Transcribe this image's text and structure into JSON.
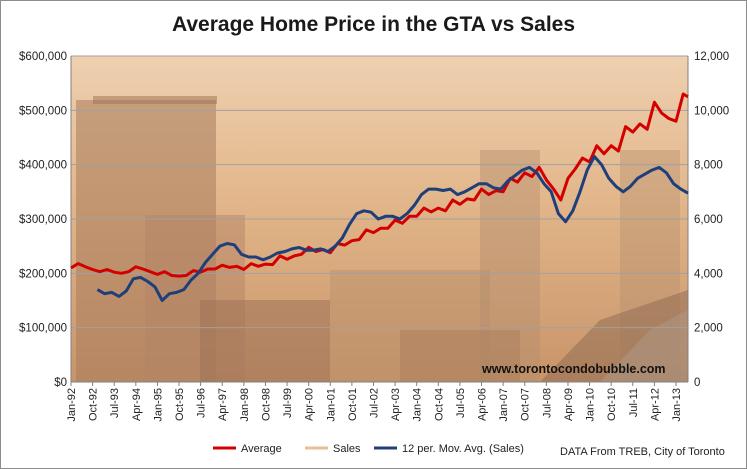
{
  "chart_data": {
    "type": "line",
    "title": "Average Home Price in the GTA vs Sales",
    "x_labels": [
      "Jan-92",
      "Oct-92",
      "Jul-93",
      "Apr-94",
      "Jan-95",
      "Oct-95",
      "Jul-96",
      "Apr-97",
      "Jan-98",
      "Oct-98",
      "Jul-99",
      "Apr-00",
      "Jan-01",
      "Oct-01",
      "Jul-02",
      "Apr-03",
      "Jan-04",
      "Oct-04",
      "Jul-05",
      "Apr-06",
      "Jan-07",
      "Oct-07",
      "Jul-08",
      "Apr-09",
      "Jan-10",
      "Oct-10",
      "Jul-11",
      "Apr-12",
      "Jan-13"
    ],
    "y_left": {
      "min": 0,
      "max": 600000,
      "ticks": [
        "$0",
        "$100,000",
        "$200,000",
        "$300,000",
        "$400,000",
        "$500,000",
        "$600,000"
      ]
    },
    "y_right": {
      "min": 0,
      "max": 12000,
      "ticks": [
        "0",
        "2,000",
        "4,000",
        "6,000",
        "8,000",
        "10,000",
        "12,000"
      ]
    },
    "grid": "horizontal",
    "legend_position": "bottom",
    "series": [
      {
        "name": "Average",
        "axis": "left",
        "color": "#d40000",
        "points": [
          [
            "Jan-92",
            210000
          ],
          [
            "Apr-92",
            218000
          ],
          [
            "Jul-92",
            212000
          ],
          [
            "Oct-92",
            207000
          ],
          [
            "Jan-93",
            203000
          ],
          [
            "Apr-93",
            207000
          ],
          [
            "Jul-93",
            202000
          ],
          [
            "Oct-93",
            200000
          ],
          [
            "Jan-94",
            203000
          ],
          [
            "Apr-94",
            212000
          ],
          [
            "Jul-94",
            208000
          ],
          [
            "Oct-94",
            203000
          ],
          [
            "Jan-95",
            198000
          ],
          [
            "Apr-95",
            203000
          ],
          [
            "Jul-95",
            196000
          ],
          [
            "Oct-95",
            195000
          ],
          [
            "Jan-96",
            196000
          ],
          [
            "Apr-96",
            205000
          ],
          [
            "Jul-96",
            202000
          ],
          [
            "Oct-96",
            208000
          ],
          [
            "Jan-97",
            208000
          ],
          [
            "Apr-97",
            215000
          ],
          [
            "Jul-97",
            211000
          ],
          [
            "Oct-97",
            213000
          ],
          [
            "Jan-98",
            207000
          ],
          [
            "Apr-98",
            218000
          ],
          [
            "Jul-98",
            213000
          ],
          [
            "Oct-98",
            217000
          ],
          [
            "Jan-99",
            216000
          ],
          [
            "Apr-99",
            232000
          ],
          [
            "Jul-99",
            226000
          ],
          [
            "Oct-99",
            232000
          ],
          [
            "Jan-00",
            235000
          ],
          [
            "Apr-00",
            248000
          ],
          [
            "Jul-00",
            240000
          ],
          [
            "Oct-00",
            244000
          ],
          [
            "Jan-01",
            238000
          ],
          [
            "Apr-01",
            255000
          ],
          [
            "Jul-01",
            252000
          ],
          [
            "Oct-01",
            260000
          ],
          [
            "Jan-02",
            262000
          ],
          [
            "Apr-02",
            280000
          ],
          [
            "Jul-02",
            275000
          ],
          [
            "Oct-02",
            283000
          ],
          [
            "Jan-03",
            283000
          ],
          [
            "Apr-03",
            298000
          ],
          [
            "Jul-03",
            292000
          ],
          [
            "Oct-03",
            305000
          ],
          [
            "Jan-04",
            305000
          ],
          [
            "Apr-04",
            320000
          ],
          [
            "Jul-04",
            313000
          ],
          [
            "Oct-04",
            320000
          ],
          [
            "Jan-05",
            315000
          ],
          [
            "Apr-05",
            335000
          ],
          [
            "Jul-05",
            327000
          ],
          [
            "Oct-05",
            337000
          ],
          [
            "Jan-06",
            335000
          ],
          [
            "Apr-06",
            355000
          ],
          [
            "Jul-06",
            345000
          ],
          [
            "Oct-06",
            352000
          ],
          [
            "Jan-07",
            350000
          ],
          [
            "Apr-07",
            375000
          ],
          [
            "Jul-07",
            368000
          ],
          [
            "Oct-07",
            385000
          ],
          [
            "Jan-08",
            378000
          ],
          [
            "Apr-08",
            395000
          ],
          [
            "Jul-08",
            372000
          ],
          [
            "Oct-08",
            355000
          ],
          [
            "Jan-09",
            335000
          ],
          [
            "Apr-09",
            375000
          ],
          [
            "Jul-09",
            392000
          ],
          [
            "Oct-09",
            412000
          ],
          [
            "Jan-10",
            405000
          ],
          [
            "Apr-10",
            435000
          ],
          [
            "Jul-10",
            420000
          ],
          [
            "Oct-10",
            435000
          ],
          [
            "Jan-11",
            425000
          ],
          [
            "Apr-11",
            470000
          ],
          [
            "Jul-11",
            460000
          ],
          [
            "Oct-11",
            475000
          ],
          [
            "Jan-12",
            465000
          ],
          [
            "Apr-12",
            515000
          ],
          [
            "Jul-12",
            495000
          ],
          [
            "Oct-12",
            485000
          ],
          [
            "Jan-13",
            480000
          ],
          [
            "Apr-13",
            530000
          ],
          [
            "Jun-13",
            525000
          ]
        ]
      },
      {
        "name": "Sales",
        "axis": "right",
        "color": "#e8c090",
        "points": []
      },
      {
        "name": "12 per. Mov. Avg. (Sales)",
        "axis": "right",
        "color": "#1f3f7a",
        "points": [
          [
            "Dec-92",
            3400
          ],
          [
            "Mar-93",
            3250
          ],
          [
            "Jun-93",
            3300
          ],
          [
            "Sep-93",
            3150
          ],
          [
            "Dec-93",
            3350
          ],
          [
            "Mar-94",
            3800
          ],
          [
            "Jun-94",
            3850
          ],
          [
            "Sep-94",
            3700
          ],
          [
            "Dec-94",
            3500
          ],
          [
            "Mar-95",
            3000
          ],
          [
            "Jun-95",
            3250
          ],
          [
            "Sep-95",
            3300
          ],
          [
            "Dec-95",
            3400
          ],
          [
            "Mar-96",
            3750
          ],
          [
            "Jun-96",
            4000
          ],
          [
            "Sep-96",
            4400
          ],
          [
            "Dec-96",
            4700
          ],
          [
            "Mar-97",
            5000
          ],
          [
            "Jun-97",
            5100
          ],
          [
            "Sep-97",
            5050
          ],
          [
            "Dec-97",
            4700
          ],
          [
            "Mar-98",
            4600
          ],
          [
            "Jun-98",
            4600
          ],
          [
            "Sep-98",
            4500
          ],
          [
            "Dec-98",
            4600
          ],
          [
            "Mar-99",
            4750
          ],
          [
            "Jun-99",
            4800
          ],
          [
            "Sep-99",
            4900
          ],
          [
            "Dec-99",
            4950
          ],
          [
            "Mar-00",
            4850
          ],
          [
            "Jun-00",
            4850
          ],
          [
            "Sep-00",
            4900
          ],
          [
            "Dec-00",
            4800
          ],
          [
            "Mar-01",
            5000
          ],
          [
            "Jun-01",
            5300
          ],
          [
            "Sep-01",
            5800
          ],
          [
            "Dec-01",
            6200
          ],
          [
            "Mar-02",
            6300
          ],
          [
            "Jun-02",
            6250
          ],
          [
            "Sep-02",
            6000
          ],
          [
            "Dec-02",
            6100
          ],
          [
            "Mar-03",
            6100
          ],
          [
            "Jun-03",
            6000
          ],
          [
            "Sep-03",
            6200
          ],
          [
            "Dec-03",
            6500
          ],
          [
            "Mar-04",
            6900
          ],
          [
            "Jun-04",
            7100
          ],
          [
            "Sep-04",
            7100
          ],
          [
            "Dec-04",
            7050
          ],
          [
            "Mar-05",
            7100
          ],
          [
            "Jun-05",
            6900
          ],
          [
            "Sep-05",
            7000
          ],
          [
            "Dec-05",
            7150
          ],
          [
            "Mar-06",
            7300
          ],
          [
            "Jun-06",
            7300
          ],
          [
            "Sep-06",
            7150
          ],
          [
            "Dec-06",
            7100
          ],
          [
            "Mar-07",
            7400
          ],
          [
            "Jun-07",
            7600
          ],
          [
            "Sep-07",
            7800
          ],
          [
            "Dec-07",
            7900
          ],
          [
            "Mar-08",
            7700
          ],
          [
            "Jun-08",
            7300
          ],
          [
            "Sep-08",
            7000
          ],
          [
            "Dec-08",
            6200
          ],
          [
            "Mar-09",
            5900
          ],
          [
            "Jun-09",
            6300
          ],
          [
            "Sep-09",
            7000
          ],
          [
            "Dec-09",
            7800
          ],
          [
            "Mar-10",
            8300
          ],
          [
            "Jun-10",
            8000
          ],
          [
            "Sep-10",
            7500
          ],
          [
            "Dec-10",
            7200
          ],
          [
            "Mar-11",
            7000
          ],
          [
            "Jun-11",
            7200
          ],
          [
            "Sep-11",
            7500
          ],
          [
            "Dec-11",
            7650
          ],
          [
            "Mar-12",
            7800
          ],
          [
            "Jun-12",
            7900
          ],
          [
            "Sep-12",
            7700
          ],
          [
            "Dec-12",
            7300
          ],
          [
            "Mar-13",
            7100
          ],
          [
            "Jun-13",
            6950
          ]
        ]
      }
    ],
    "annotations": [
      "www.torontocondobubble.com",
      "DATA From TREB, City of Toronto"
    ]
  }
}
